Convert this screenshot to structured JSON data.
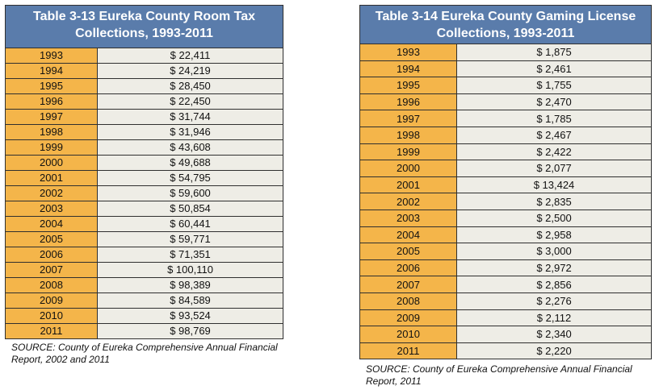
{
  "room_tax": {
    "title": "Table 3-13 Eureka County Room Tax Collections, 1993-2011",
    "rows": [
      {
        "year": "1993",
        "value": "$ 22,411"
      },
      {
        "year": "1994",
        "value": "$ 24,219"
      },
      {
        "year": "1995",
        "value": "$ 28,450"
      },
      {
        "year": "1996",
        "value": "$ 22,450"
      },
      {
        "year": "1997",
        "value": "$ 31,744"
      },
      {
        "year": "1998",
        "value": "$ 31,946"
      },
      {
        "year": "1999",
        "value": "$ 43,608"
      },
      {
        "year": "2000",
        "value": "$ 49,688"
      },
      {
        "year": "2001",
        "value": "$ 54,795"
      },
      {
        "year": "2002",
        "value": "$ 59,600"
      },
      {
        "year": "2003",
        "value": "$ 50,854"
      },
      {
        "year": "2004",
        "value": "$ 60,441"
      },
      {
        "year": "2005",
        "value": "$ 59,771"
      },
      {
        "year": "2006",
        "value": "$ 71,351"
      },
      {
        "year": "2007",
        "value": "$ 100,110"
      },
      {
        "year": "2008",
        "value": "$ 98,389"
      },
      {
        "year": "2009",
        "value": "$ 84,589"
      },
      {
        "year": "2010",
        "value": "$ 93,524"
      },
      {
        "year": "2011",
        "value": "$ 98,769"
      }
    ],
    "source": "SOURCE: County of Eureka Comprehensive Annual Financial Report, 2002 and 2011"
  },
  "gaming_license": {
    "title": "Table 3-14 Eureka County Gaming License Collections, 1993-2011",
    "rows": [
      {
        "year": "1993",
        "value": "$ 1,875"
      },
      {
        "year": "1994",
        "value": "$ 2,461"
      },
      {
        "year": "1995",
        "value": "$ 1,755"
      },
      {
        "year": "1996",
        "value": "$ 2,470"
      },
      {
        "year": "1997",
        "value": "$ 1,785"
      },
      {
        "year": "1998",
        "value": "$ 2,467"
      },
      {
        "year": "1999",
        "value": "$ 2,422"
      },
      {
        "year": "2000",
        "value": "$ 2,077"
      },
      {
        "year": "2001",
        "value": "$ 13,424"
      },
      {
        "year": "2002",
        "value": "$ 2,835"
      },
      {
        "year": "2003",
        "value": "$ 2,500"
      },
      {
        "year": "2004",
        "value": "$ 2,958"
      },
      {
        "year": "2005",
        "value": "$ 3,000"
      },
      {
        "year": "2006",
        "value": "$ 2,972"
      },
      {
        "year": "2007",
        "value": "$ 2,856"
      },
      {
        "year": "2008",
        "value": "$ 2,276"
      },
      {
        "year": "2009",
        "value": "$ 2,112"
      },
      {
        "year": "2010",
        "value": "$ 2,340"
      },
      {
        "year": "2011",
        "value": "$ 2,220"
      }
    ],
    "source": "SOURCE: County of Eureka Comprehensive Annual Financial Report, 2011"
  },
  "colors": {
    "header_bg": "#5a7cab",
    "year_bg": "#f4b54a",
    "value_bg": "#eeede6"
  }
}
